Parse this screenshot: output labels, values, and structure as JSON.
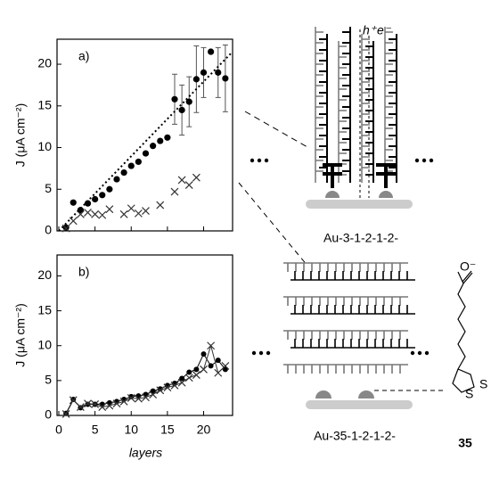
{
  "chart_data": [
    {
      "type": "scatter",
      "panel_label": "a)",
      "ylabel": "J (μA cm⁻²)",
      "xlim": [
        0,
        24
      ],
      "ylim": [
        0,
        23
      ],
      "xticks": [
        0,
        5,
        10,
        15,
        20
      ],
      "yticks": [
        0,
        5,
        10,
        15,
        20
      ],
      "series": [
        {
          "marker": "circle",
          "color": "#000000",
          "x": [
            1,
            2,
            3,
            4,
            5,
            6,
            7,
            8,
            9,
            10,
            11,
            12,
            13,
            14,
            15,
            16,
            17,
            18,
            19,
            20,
            21,
            22,
            23
          ],
          "values": [
            0.4,
            3.4,
            2.5,
            3.3,
            3.8,
            4.3,
            5.0,
            6.2,
            7.0,
            7.8,
            8.3,
            9.3,
            10.2,
            10.8,
            11.2,
            15.8,
            14.5,
            15.5,
            18.2,
            19.0,
            21.5,
            19.0,
            18.3
          ],
          "errors": [
            0,
            0,
            0,
            0,
            0,
            0,
            0,
            0,
            0,
            0,
            0,
            0,
            0,
            0,
            0,
            3,
            3,
            3,
            4,
            3,
            0,
            3,
            4
          ]
        },
        {
          "marker": "cross",
          "color": "#333333",
          "x": [
            1,
            2,
            3,
            4,
            5,
            6,
            7,
            9,
            10,
            11,
            12,
            14,
            16,
            17,
            18,
            19
          ],
          "values": [
            0.3,
            1.2,
            2.0,
            2.2,
            2.0,
            1.9,
            2.6,
            2.0,
            2.7,
            2.1,
            2.4,
            3.1,
            4.7,
            6.1,
            5.5,
            6.4
          ]
        },
        {
          "marker": "dotted-line",
          "color": "#000000",
          "x": [
            0,
            24
          ],
          "values": [
            0,
            21.5
          ]
        }
      ]
    },
    {
      "type": "scatter",
      "panel_label": "b)",
      "ylabel": "J (μA cm⁻²)",
      "xlabel": "layers",
      "xlim": [
        0,
        24
      ],
      "ylim": [
        0,
        23
      ],
      "xticks": [
        0,
        5,
        10,
        15,
        20
      ],
      "yticks": [
        0,
        5,
        10,
        15,
        20
      ],
      "series": [
        {
          "marker": "circle-line",
          "color": "#000000",
          "x": [
            1,
            2,
            3,
            4,
            5,
            6,
            7,
            8,
            9,
            10,
            11,
            12,
            13,
            14,
            15,
            16,
            17,
            18,
            19,
            20,
            21,
            22,
            23
          ],
          "values": [
            0.3,
            2.3,
            1.1,
            1.6,
            1.6,
            1.6,
            1.8,
            2.0,
            2.3,
            2.7,
            2.8,
            3.0,
            3.5,
            3.8,
            4.3,
            4.6,
            5.3,
            6.2,
            6.6,
            8.8,
            7.1,
            7.9,
            6.6
          ]
        },
        {
          "marker": "cross-line",
          "color": "#333333",
          "x": [
            1,
            2,
            3,
            4,
            5,
            6,
            7,
            8,
            9,
            10,
            11,
            12,
            13,
            14,
            15,
            16,
            17,
            18,
            19,
            20,
            21,
            22,
            23
          ],
          "values": [
            0.2,
            2.2,
            1.2,
            1.7,
            1.6,
            1.2,
            1.4,
            1.7,
            2.0,
            2.5,
            2.4,
            2.6,
            3.0,
            3.6,
            4.0,
            4.3,
            4.7,
            5.4,
            5.8,
            6.6,
            10.0,
            6.1,
            7.1
          ]
        }
      ]
    }
  ],
  "diagrams": {
    "top": {
      "hole": "h⁺",
      "electron": "e⁻",
      "label": "Au-3-1-2-1-2-"
    },
    "bottom": {
      "label": "Au-35-1-2-1-2-",
      "compound": "35",
      "carboxylate": "O⁻",
      "sulfur": "S",
      "sulfur2": "S"
    }
  }
}
